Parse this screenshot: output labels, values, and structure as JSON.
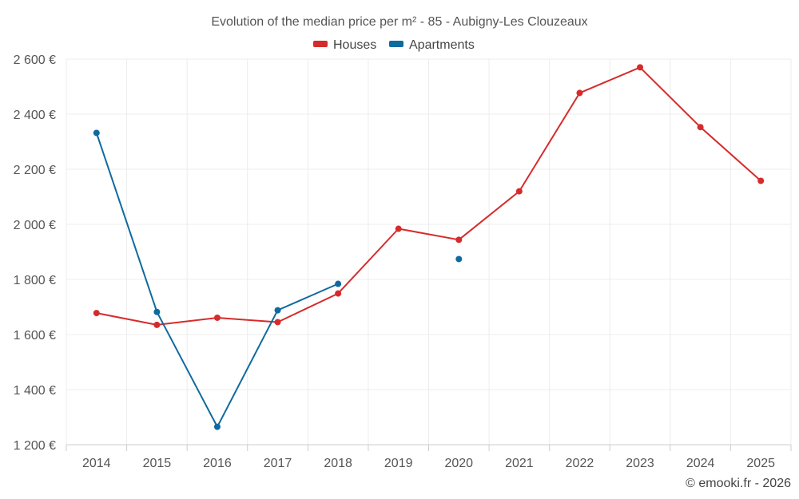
{
  "chart_data": {
    "type": "line",
    "title": "Evolution of the median price per m² - 85 - Aubigny-Les Clouzeaux",
    "x": [
      "2014",
      "2015",
      "2016",
      "2017",
      "2018",
      "2019",
      "2020",
      "2021",
      "2022",
      "2023",
      "2024",
      "2025"
    ],
    "ylim": [
      1200,
      2600
    ],
    "y_ticks": [
      1200,
      1400,
      1600,
      1800,
      2000,
      2200,
      2400,
      2600
    ],
    "y_tick_labels": [
      "1 200 €",
      "1 400 €",
      "1 600 €",
      "1 800 €",
      "2 000 €",
      "2 200 €",
      "2 400 €",
      "2 600 €"
    ],
    "grid": true,
    "legend_position": "top-center",
    "series": [
      {
        "name": "Houses",
        "color": "#d62b2b",
        "values": [
          1678,
          1635,
          1661,
          1645,
          1749,
          1984,
          1944,
          2120,
          2477,
          2570,
          2353,
          2158
        ]
      },
      {
        "name": "Apartments",
        "color": "#0f6a9e",
        "values": [
          2332,
          1682,
          1265,
          1688,
          1784,
          null,
          1874,
          null,
          null,
          null,
          null,
          null
        ]
      }
    ],
    "credit": "© emooki.fr - 2026"
  }
}
